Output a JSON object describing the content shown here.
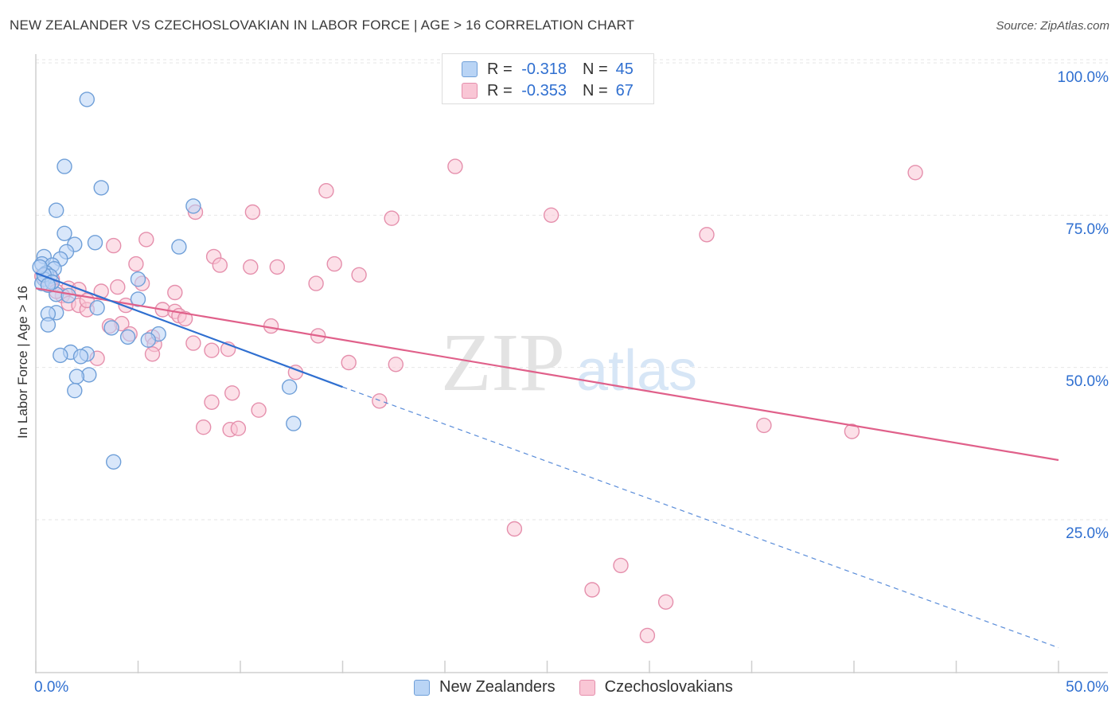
{
  "title": "NEW ZEALANDER VS CZECHOSLOVAKIAN IN LABOR FORCE | AGE > 16 CORRELATION CHART",
  "source": "Source: ZipAtlas.com",
  "watermark": {
    "zip": "ZIP",
    "atlas": "atlas"
  },
  "legend_top": {
    "rows": [
      {
        "r_label": "R =",
        "r_value": "-0.318",
        "n_label": "N =",
        "n_value": "45"
      },
      {
        "r_label": "R =",
        "r_value": "-0.353",
        "n_label": "N =",
        "n_value": "67"
      }
    ]
  },
  "legend_bottom": [
    "New Zealanders",
    "Czechoslovakians"
  ],
  "chart_data": {
    "type": "scatter",
    "xlabel": "",
    "ylabel": "In Labor Force | Age > 16",
    "xlim": [
      0,
      50
    ],
    "ylim": [
      0,
      105
    ],
    "x_tick_labels": [
      "0.0%",
      "50.0%"
    ],
    "y_tick_labels": [
      "25.0%",
      "50.0%",
      "75.0%",
      "100.0%"
    ],
    "y_ticks": [
      25,
      50,
      75,
      100
    ],
    "grid": true,
    "colors": {
      "blue": "#6f9fd8",
      "blue_fill": "#b9d4f5",
      "pink": "#e58fac",
      "pink_fill": "#f9c6d5",
      "blue_line": "#2f6fd0",
      "pink_line": "#e0608a",
      "tick_text": "#2f6fd0"
    },
    "series": [
      {
        "name": "New Zealanders",
        "color": "blue",
        "points": [
          [
            2.5,
            94.0
          ],
          [
            1.4,
            83.0
          ],
          [
            3.2,
            79.5
          ],
          [
            1.0,
            75.8
          ],
          [
            7.7,
            76.5
          ],
          [
            1.4,
            72.0
          ],
          [
            1.9,
            70.2
          ],
          [
            2.9,
            70.5
          ],
          [
            7.0,
            69.8
          ],
          [
            1.5,
            69.0
          ],
          [
            0.4,
            68.2
          ],
          [
            1.2,
            67.8
          ],
          [
            0.3,
            67.0
          ],
          [
            0.8,
            66.8
          ],
          [
            0.9,
            66.2
          ],
          [
            0.5,
            65.5
          ],
          [
            0.7,
            65.0
          ],
          [
            0.4,
            64.5
          ],
          [
            0.3,
            63.8
          ],
          [
            5.0,
            64.5
          ],
          [
            1.0,
            62.0
          ],
          [
            5.0,
            61.2
          ],
          [
            3.0,
            59.8
          ],
          [
            1.0,
            59.0
          ],
          [
            0.6,
            58.8
          ],
          [
            0.6,
            57.0
          ],
          [
            3.7,
            56.5
          ],
          [
            6.0,
            55.5
          ],
          [
            4.5,
            55.0
          ],
          [
            5.5,
            54.5
          ],
          [
            1.7,
            52.5
          ],
          [
            2.5,
            52.2
          ],
          [
            1.2,
            52.0
          ],
          [
            2.2,
            51.8
          ],
          [
            2.6,
            48.8
          ],
          [
            2.0,
            48.5
          ],
          [
            1.9,
            46.2
          ],
          [
            12.4,
            46.8
          ],
          [
            12.6,
            40.8
          ],
          [
            3.8,
            34.5
          ],
          [
            0.4,
            65.2
          ],
          [
            0.8,
            64.0
          ],
          [
            1.6,
            61.8
          ],
          [
            0.2,
            66.5
          ],
          [
            0.6,
            63.5
          ]
        ]
      },
      {
        "name": "Czechoslovakians",
        "color": "pink",
        "points": [
          [
            20.5,
            83.0
          ],
          [
            43.0,
            82.0
          ],
          [
            14.2,
            79.0
          ],
          [
            7.8,
            75.5
          ],
          [
            10.6,
            75.5
          ],
          [
            17.4,
            74.5
          ],
          [
            25.2,
            75.0
          ],
          [
            32.8,
            71.8
          ],
          [
            5.4,
            71.0
          ],
          [
            3.8,
            70.0
          ],
          [
            8.7,
            68.2
          ],
          [
            4.9,
            67.0
          ],
          [
            9.0,
            66.8
          ],
          [
            10.5,
            66.5
          ],
          [
            11.8,
            66.5
          ],
          [
            14.6,
            67.0
          ],
          [
            15.8,
            65.2
          ],
          [
            5.2,
            63.8
          ],
          [
            13.7,
            63.8
          ],
          [
            0.8,
            64.5
          ],
          [
            0.7,
            63.5
          ],
          [
            1.6,
            63.0
          ],
          [
            2.1,
            62.8
          ],
          [
            3.2,
            62.5
          ],
          [
            4.0,
            63.2
          ],
          [
            6.8,
            62.3
          ],
          [
            1.3,
            61.8
          ],
          [
            1.6,
            60.5
          ],
          [
            2.1,
            60.2
          ],
          [
            2.5,
            59.5
          ],
          [
            4.4,
            60.2
          ],
          [
            6.2,
            59.5
          ],
          [
            6.8,
            59.2
          ],
          [
            7.0,
            58.5
          ],
          [
            7.3,
            58.0
          ],
          [
            4.2,
            57.2
          ],
          [
            3.6,
            56.8
          ],
          [
            11.5,
            56.8
          ],
          [
            4.6,
            55.5
          ],
          [
            5.7,
            55.0
          ],
          [
            13.8,
            55.2
          ],
          [
            5.8,
            53.8
          ],
          [
            7.7,
            54.0
          ],
          [
            8.6,
            52.8
          ],
          [
            9.4,
            53.0
          ],
          [
            5.7,
            52.2
          ],
          [
            3.0,
            51.5
          ],
          [
            15.3,
            50.8
          ],
          [
            17.6,
            50.5
          ],
          [
            12.7,
            49.2
          ],
          [
            9.6,
            45.8
          ],
          [
            8.6,
            44.3
          ],
          [
            10.9,
            43.0
          ],
          [
            16.8,
            44.5
          ],
          [
            8.2,
            40.2
          ],
          [
            9.5,
            39.8
          ],
          [
            9.9,
            40.0
          ],
          [
            35.6,
            40.5
          ],
          [
            39.9,
            39.5
          ],
          [
            23.4,
            23.5
          ],
          [
            28.6,
            17.5
          ],
          [
            27.2,
            13.5
          ],
          [
            30.8,
            11.5
          ],
          [
            29.9,
            6.0
          ],
          [
            0.3,
            65.0
          ],
          [
            2.5,
            61.0
          ],
          [
            1.0,
            62.5
          ]
        ]
      }
    ],
    "trendlines": [
      {
        "series": "New Zealanders",
        "solid": [
          [
            0,
            65.5
          ],
          [
            15,
            46.8
          ]
        ],
        "dashed": [
          [
            15,
            46.8
          ],
          [
            50,
            4.0
          ]
        ]
      },
      {
        "series": "Czechoslovakians",
        "solid": [
          [
            0,
            63.0
          ],
          [
            50,
            34.8
          ]
        ]
      }
    ]
  }
}
